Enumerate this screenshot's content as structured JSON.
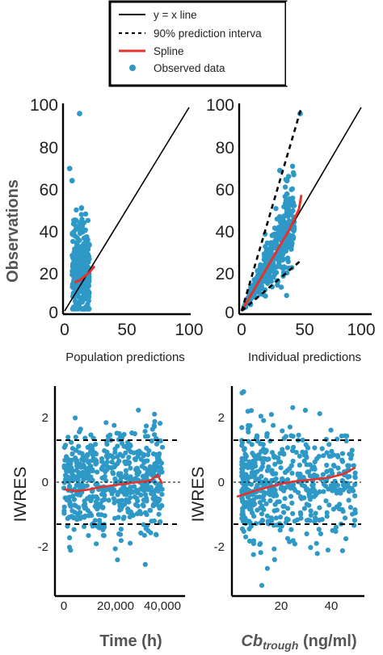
{
  "legend": {
    "entries": [
      {
        "label": "y = x line",
        "style": "solid-black"
      },
      {
        "label": "90% prediction interva",
        "style": "dashed-black"
      },
      {
        "label": "Spline",
        "style": "solid-red"
      },
      {
        "label": "Observed data",
        "style": "blue-dot"
      }
    ]
  },
  "colors": {
    "points": "#2e98c6",
    "spline": "#e5322d",
    "lines": "#000000"
  },
  "chart_data": [
    {
      "type": "scatter",
      "panel": "population-predictions",
      "xlabel": "Population predictions",
      "ylabel": "Observations",
      "xlim": [
        0,
        100
      ],
      "ylim": [
        0,
        100
      ],
      "xticks": [
        "0",
        "50",
        "100"
      ],
      "yticks": [
        "0",
        "20",
        "40",
        "60",
        "80",
        "100"
      ],
      "identity_line": true,
      "spline": {
        "x": [
          8,
          12,
          16,
          20,
          24
        ],
        "y": [
          14,
          15,
          17,
          19,
          22
        ]
      },
      "outliers": [
        {
          "x": 12,
          "y": 97
        },
        {
          "x": 4,
          "y": 70
        },
        {
          "x": 6,
          "y": 64
        }
      ],
      "observed_summary": "cluster x 5-25, y 2-55"
    },
    {
      "type": "scatter",
      "panel": "individual-predictions",
      "xlabel": "Individual predictions",
      "xlim": [
        0,
        100
      ],
      "ylim": [
        0,
        100
      ],
      "xticks": [
        "0",
        "50",
        "100"
      ],
      "yticks": [
        "0",
        "20",
        "40",
        "60",
        "80",
        "100"
      ],
      "identity_line": true,
      "pi_upper": {
        "x": [
          0,
          50
        ],
        "y": [
          0,
          100
        ]
      },
      "pi_lower": {
        "x": [
          0,
          50
        ],
        "y": [
          0,
          25
        ]
      },
      "spline": {
        "x": [
          2,
          10,
          20,
          30,
          40,
          48,
          50
        ],
        "y": [
          2,
          10,
          20,
          30,
          40,
          50,
          57
        ]
      },
      "outliers": [
        {
          "x": 49,
          "y": 97
        },
        {
          "x": 32,
          "y": 69
        },
        {
          "x": 38,
          "y": 64
        }
      ]
    },
    {
      "type": "scatter",
      "panel": "iwres-vs-time",
      "xlabel": "Time (h)",
      "ylabel": "IWRES",
      "xlim": [
        -1500,
        42000
      ],
      "ylim": [
        -3.5,
        3.0
      ],
      "xticks": [
        "0",
        "20,000",
        "40,000"
      ],
      "yticks": [
        "-2",
        "0",
        "2"
      ],
      "reference_lines": [
        1.3,
        0,
        -1.3
      ],
      "spline": {
        "x": [
          0,
          5000,
          10000,
          15000,
          20000,
          25000,
          30000,
          35000,
          38000,
          40000
        ],
        "y": [
          -0.22,
          -0.28,
          -0.23,
          -0.15,
          -0.1,
          -0.05,
          0.0,
          0.05,
          0.22,
          -0.05
        ]
      }
    },
    {
      "type": "scatter",
      "panel": "iwres-vs-cbtrough",
      "xlabel": "Cb",
      "xlabel_sub": "trough",
      "xlabel_unit": " (ng/ml)",
      "ylabel": "IWRES",
      "xlim": [
        0,
        53
      ],
      "ylim": [
        -3.5,
        3.0
      ],
      "xticks": [
        "20",
        "40"
      ],
      "yticks": [
        "-2",
        "0",
        "2"
      ],
      "reference_lines": [
        1.3,
        0,
        -1.3
      ],
      "spline": {
        "x": [
          2,
          6,
          10,
          15,
          20,
          25,
          30,
          35,
          40,
          45,
          50
        ],
        "y": [
          -0.45,
          -0.35,
          -0.25,
          -0.15,
          -0.05,
          0.02,
          0.06,
          0.1,
          0.15,
          0.25,
          0.45
        ]
      }
    }
  ]
}
